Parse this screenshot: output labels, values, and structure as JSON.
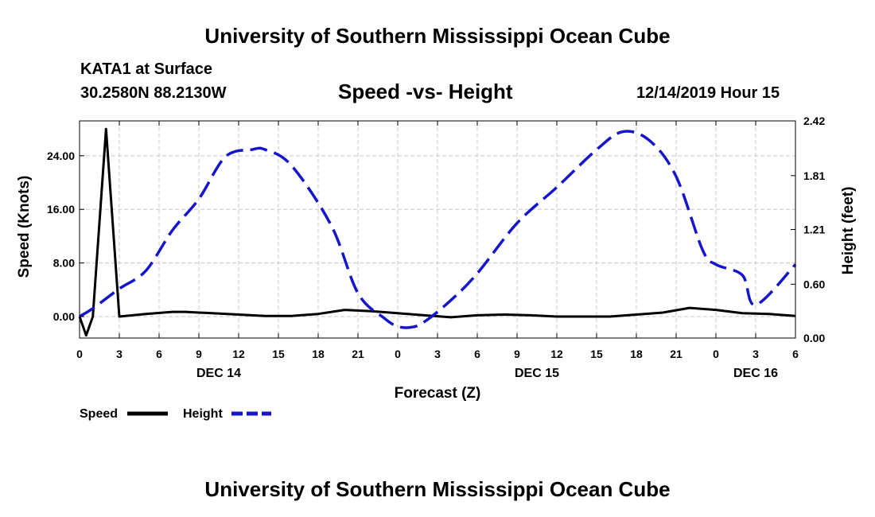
{
  "header": {
    "title": "University of Southern Mississippi Ocean Cube",
    "station": "KATA1 at Surface",
    "coordinates": "30.2580N 88.2130W",
    "plot_title": "Speed -vs- Height",
    "datetime": "12/14/2019 Hour 15"
  },
  "footer": {
    "title": "University of Southern Mississippi Ocean Cube"
  },
  "chart_data": {
    "type": "line",
    "title": "Speed -vs- Height",
    "xlabel": "Forecast (Z)",
    "ylabel": "Speed (Knots)",
    "y2label": "Height (feet)",
    "x_unit": "hours since DEC 14 00Z",
    "xlim": [
      0,
      54
    ],
    "ylim": [
      -3.2,
      29.2
    ],
    "y2lim": [
      0.0,
      2.42
    ],
    "x_ticks": [
      0,
      3,
      6,
      9,
      12,
      15,
      18,
      21,
      24,
      27,
      30,
      33,
      36,
      39,
      42,
      45,
      48,
      51,
      54
    ],
    "x_tick_labels": [
      "0",
      "3",
      "6",
      "9",
      "12",
      "15",
      "18",
      "21",
      "0",
      "3",
      "6",
      "9",
      "12",
      "15",
      "18",
      "21",
      "0",
      "3",
      "6"
    ],
    "date_labels": [
      {
        "x": 10.5,
        "label": "DEC 14"
      },
      {
        "x": 34.5,
        "label": "DEC 15"
      },
      {
        "x": 51,
        "label": "DEC 16"
      }
    ],
    "y_ticks": [
      0,
      8,
      16,
      24
    ],
    "y_tick_labels": [
      "0.00",
      "8.00",
      "16.00",
      "24.00"
    ],
    "y2_ticks": [
      0.0,
      0.6,
      1.21,
      1.81,
      2.42
    ],
    "y2_tick_labels": [
      "0.00",
      "0.60",
      "1.21",
      "1.81",
      "2.42"
    ],
    "grid": true,
    "legend": "bottom-left",
    "series": [
      {
        "name": "Speed",
        "axis": "left",
        "color": "#000000",
        "style": "solid",
        "x": [
          0,
          0.5,
          1,
          2,
          3,
          5,
          7,
          8,
          10,
          12,
          14,
          16,
          18,
          20,
          22,
          24,
          26,
          28,
          30,
          32,
          34,
          36,
          38,
          40,
          42,
          44,
          46,
          48,
          50,
          52,
          54
        ],
        "values": [
          0.0,
          -2.8,
          0.0,
          28.0,
          0.0,
          0.4,
          0.7,
          0.7,
          0.5,
          0.3,
          0.1,
          0.1,
          0.4,
          1.0,
          0.8,
          0.5,
          0.2,
          -0.1,
          0.2,
          0.3,
          0.2,
          0.0,
          0.0,
          0.0,
          0.3,
          0.6,
          1.3,
          1.0,
          0.5,
          0.4,
          0.1
        ]
      },
      {
        "name": "Height",
        "axis": "right",
        "color": "#1515cc",
        "style": "dashed",
        "x": [
          0,
          1,
          3,
          5,
          7,
          9,
          11,
          13,
          14,
          16,
          19,
          21,
          23,
          24,
          25,
          26,
          28,
          30,
          33,
          36,
          39,
          41,
          43,
          45,
          47,
          48,
          50,
          51,
          54
        ],
        "values": [
          0.24,
          0.33,
          0.55,
          0.75,
          1.2,
          1.55,
          2.02,
          2.1,
          2.1,
          1.92,
          1.25,
          0.5,
          0.22,
          0.13,
          0.12,
          0.18,
          0.42,
          0.72,
          1.28,
          1.68,
          2.1,
          2.3,
          2.2,
          1.8,
          0.98,
          0.82,
          0.7,
          0.37,
          0.82
        ]
      }
    ]
  }
}
